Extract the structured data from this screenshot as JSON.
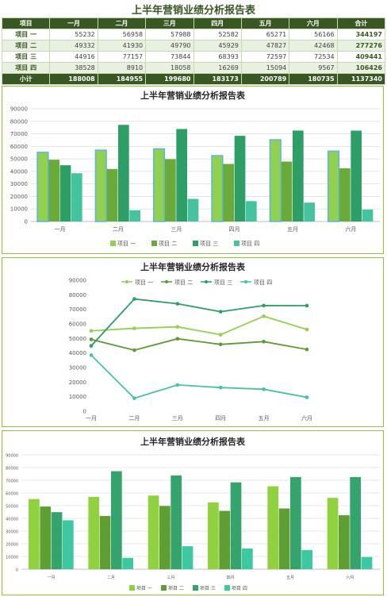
{
  "title": "上半年营销业绩分析报告表",
  "table": {
    "headers": [
      "项目",
      "一月",
      "二月",
      "三月",
      "四月",
      "五月",
      "六月",
      "合计"
    ],
    "rows": [
      {
        "label": "项目 一",
        "values": [
          "55232",
          "56958",
          "57988",
          "52582",
          "65271",
          "56166"
        ],
        "total": "344197"
      },
      {
        "label": "项目 二",
        "values": [
          "49332",
          "41930",
          "49790",
          "45929",
          "47827",
          "42468"
        ],
        "total": "277276"
      },
      {
        "label": "项目 三",
        "values": [
          "44916",
          "77157",
          "73844",
          "68393",
          "72597",
          "72534"
        ],
        "total": "409441"
      },
      {
        "label": "项目 四",
        "values": [
          "38528",
          "8910",
          "18058",
          "16269",
          "15094",
          "9567"
        ],
        "total": "106426"
      }
    ],
    "footer": {
      "label": "小计",
      "values": [
        "188008",
        "184955",
        "199680",
        "183173",
        "200789",
        "180735"
      ],
      "total": "1137340"
    }
  },
  "chart_data": [
    {
      "type": "bar",
      "title": "上半年营销业绩分析报告表",
      "categories": [
        "一月",
        "二月",
        "三月",
        "四月",
        "五月",
        "六月"
      ],
      "series": [
        {
          "name": "项目 一",
          "values": [
            55232,
            56958,
            57988,
            52582,
            65271,
            56166
          ],
          "color": "#92d050"
        },
        {
          "name": "项目 二",
          "values": [
            49332,
            41930,
            49790,
            45929,
            47827,
            42468
          ],
          "color": "#6aaa3a"
        },
        {
          "name": "项目 三",
          "values": [
            44916,
            77157,
            73844,
            68393,
            72597,
            72534
          ],
          "color": "#2e9e67"
        },
        {
          "name": "项目 四",
          "values": [
            38528,
            8910,
            18058,
            16269,
            15094,
            9567
          ],
          "color": "#45c39f"
        }
      ],
      "ylim": [
        0,
        90000
      ],
      "yticks": [
        "0",
        "10000",
        "20000",
        "30000",
        "40000",
        "50000",
        "60000",
        "70000",
        "80000",
        "90000"
      ],
      "grid": true,
      "legend": "bottom"
    },
    {
      "type": "line",
      "title": "上半年营销业绩分析报告表",
      "categories": [
        "一月",
        "二月",
        "三月",
        "四月",
        "五月",
        "六月"
      ],
      "series": [
        {
          "name": "项目 一",
          "values": [
            55232,
            56958,
            57988,
            52582,
            65271,
            56166
          ],
          "color": "#92d050"
        },
        {
          "name": "项目 二",
          "values": [
            49332,
            41930,
            49790,
            45929,
            47827,
            42468
          ],
          "color": "#5b9b33"
        },
        {
          "name": "项目 三",
          "values": [
            44916,
            77157,
            73844,
            68393,
            72597,
            72534
          ],
          "color": "#2e9e67"
        },
        {
          "name": "项目 四",
          "values": [
            38528,
            8910,
            18058,
            16269,
            15094,
            9567
          ],
          "color": "#45c39f"
        }
      ],
      "ylim": [
        0,
        90000
      ],
      "yticks": [
        "0",
        "10000",
        "20000",
        "30000",
        "40000",
        "50000",
        "60000",
        "70000",
        "80000",
        "90000"
      ],
      "grid": false,
      "legend": "top"
    },
    {
      "type": "bar",
      "title": "上半年营销业绩分析报告表",
      "categories": [
        "一月",
        "二月",
        "三月",
        "四月",
        "五月",
        "六月"
      ],
      "series": [
        {
          "name": "项目 一",
          "values": [
            55232,
            56958,
            57988,
            52582,
            65271,
            56166
          ],
          "color": "#8fd13f"
        },
        {
          "name": "项目 二",
          "values": [
            49332,
            41930,
            49790,
            45929,
            47827,
            42468
          ],
          "color": "#5e9e32"
        },
        {
          "name": "项目 三",
          "values": [
            44916,
            77157,
            73844,
            68393,
            72597,
            72534
          ],
          "color": "#34a36c"
        },
        {
          "name": "项目 四",
          "values": [
            38528,
            8910,
            18058,
            16269,
            15094,
            9567
          ],
          "color": "#3cc8a0"
        }
      ],
      "ylim": [
        0,
        90000
      ],
      "yticks": [
        "0",
        "10000",
        "20000",
        "30000",
        "40000",
        "50000",
        "60000",
        "70000",
        "80000",
        "90000"
      ],
      "grid": true,
      "legend": "bottom"
    }
  ]
}
